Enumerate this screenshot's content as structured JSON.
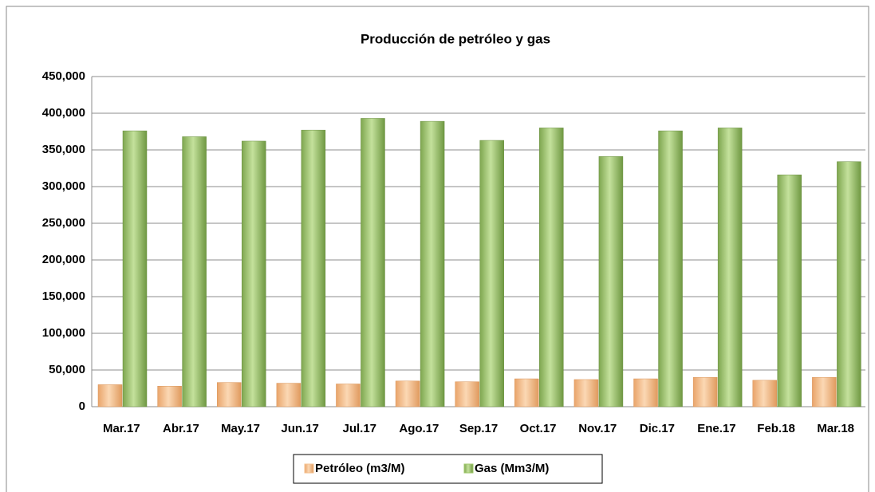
{
  "chart_data": {
    "type": "bar",
    "title": "Producción de petróleo y gas",
    "categories": [
      "Mar.17",
      "Abr.17",
      "May.17",
      "Jun.17",
      "Jul.17",
      "Ago.17",
      "Sep.17",
      "Oct.17",
      "Nov.17",
      "Dic.17",
      "Ene.17",
      "Feb.18",
      "Mar.18"
    ],
    "series": [
      {
        "name": "Petróleo (m3/M)",
        "color": "#f5c08e",
        "values": [
          30000,
          28000,
          33000,
          32000,
          31000,
          35000,
          34000,
          38000,
          37000,
          38000,
          40000,
          36000,
          40000
        ]
      },
      {
        "name": "Gas (Mm3/M)",
        "color": "#9fc86a",
        "values": [
          376000,
          368000,
          362000,
          377000,
          393000,
          389000,
          363000,
          380000,
          341000,
          376000,
          380000,
          316000,
          334000
        ]
      }
    ],
    "ylim": [
      0,
      450000
    ],
    "yticks": [
      0,
      {
        "value": 50000,
        "label": "50,000"
      },
      {
        "value": 100000,
        "label": "100,000"
      },
      {
        "value": 150000,
        "label": "150,000"
      },
      {
        "value": 200000,
        "label": "200,000"
      },
      {
        "value": 250000,
        "label": "250,000"
      },
      {
        "value": 300000,
        "label": "300,000"
      },
      {
        "value": 350000,
        "label": "350,000"
      },
      {
        "value": 400000,
        "label": "400,000"
      },
      {
        "value": 450000,
        "label": "450,000"
      }
    ],
    "grid": true,
    "legend": "bottom"
  }
}
